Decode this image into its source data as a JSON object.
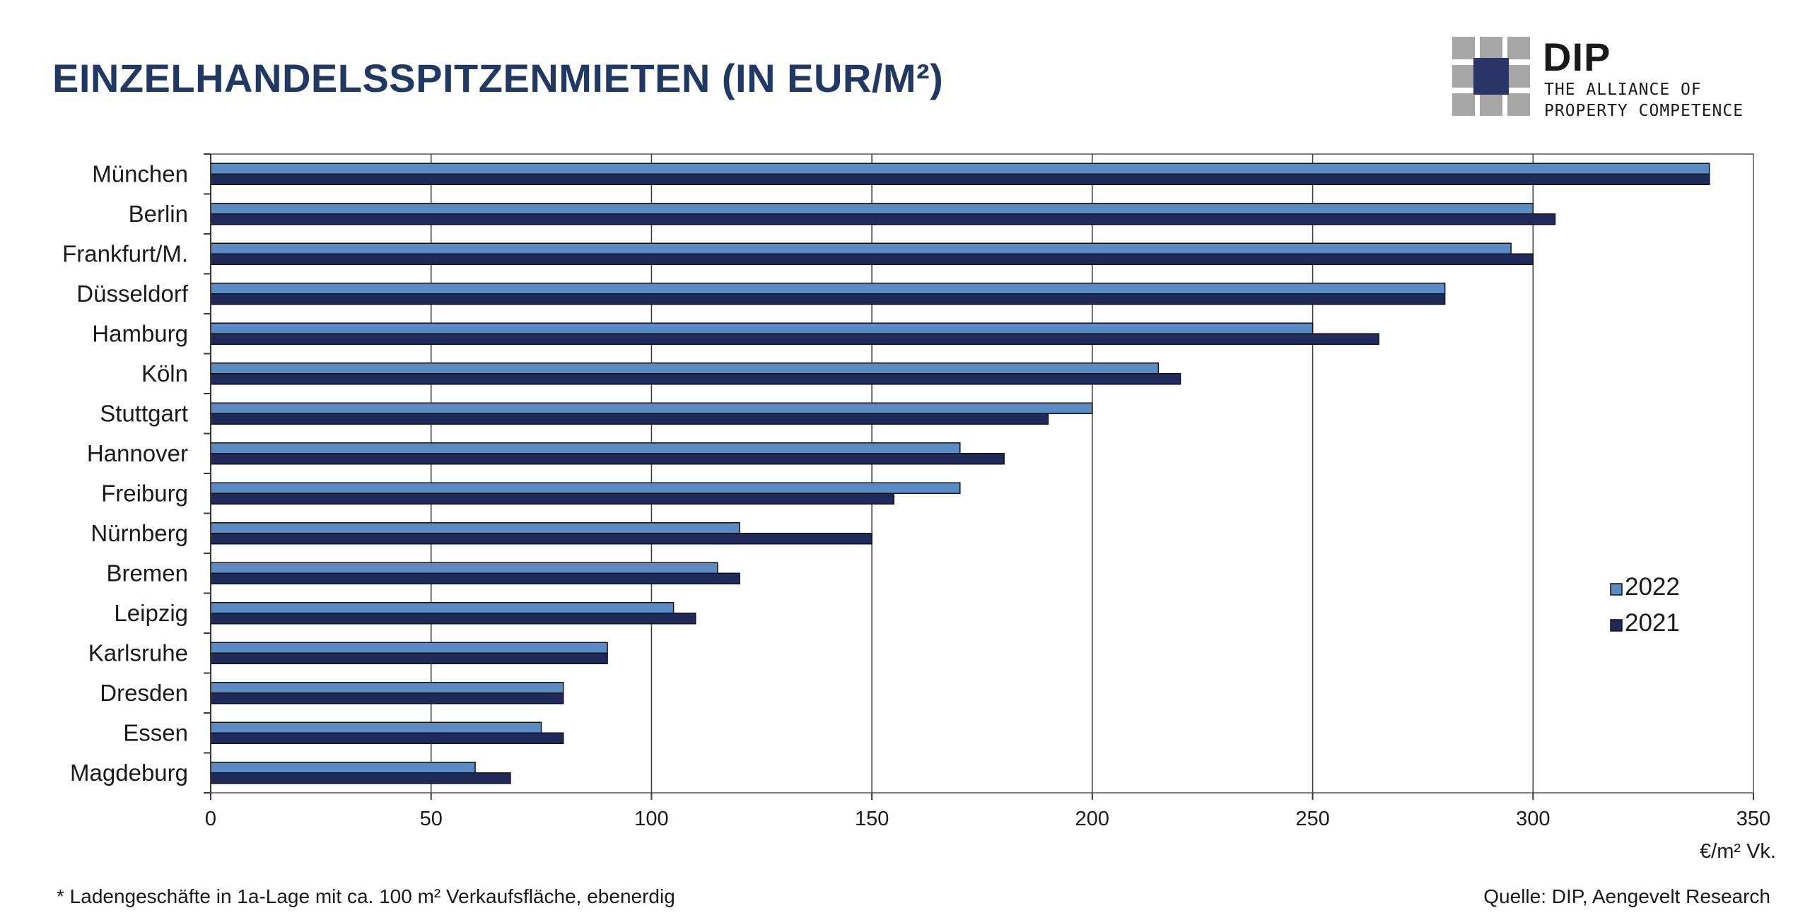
{
  "title": "EINZELHANDELSSPITZENMIETEN (IN EUR/M²)",
  "logo": {
    "name": "DIP",
    "tagline_1": "THE ALLIANCE OF",
    "tagline_2": "PROPERTY COMPETENCE"
  },
  "colors": {
    "title": "#1f3864",
    "series_2022": "#5b8bc5",
    "series_2021": "#1f2a5a",
    "logo_grey": "#a6a6a6",
    "logo_navy": "#2b3467"
  },
  "chart_data": {
    "type": "bar",
    "orientation": "horizontal",
    "categories": [
      "München",
      "Berlin",
      "Frankfurt/M.",
      "Düsseldorf",
      "Hamburg",
      "Köln",
      "Stuttgart",
      "Hannover",
      "Freiburg",
      "Nürnberg",
      "Bremen",
      "Leipzig",
      "Karlsruhe",
      "Dresden",
      "Essen",
      "Magdeburg"
    ],
    "series": [
      {
        "name": "2022",
        "values": [
          340,
          300,
          295,
          280,
          250,
          215,
          200,
          170,
          170,
          120,
          115,
          105,
          90,
          80,
          75,
          60
        ]
      },
      {
        "name": "2021",
        "values": [
          340,
          305,
          300,
          280,
          265,
          220,
          190,
          180,
          155,
          150,
          120,
          110,
          90,
          80,
          80,
          68
        ]
      }
    ],
    "xlim": [
      0,
      350
    ],
    "xticks": [
      "0",
      "50",
      "100",
      "150",
      "200",
      "250",
      "300",
      "350"
    ],
    "xlabel": "€/m² Vk.",
    "grid": "vertical",
    "legend_placement": "right"
  },
  "footnote": "* Ladengeschäfte in 1a-Lage mit ca. 100 m² Verkaufsfläche, ebenerdig",
  "source": "Quelle: DIP, Aengevelt Research"
}
